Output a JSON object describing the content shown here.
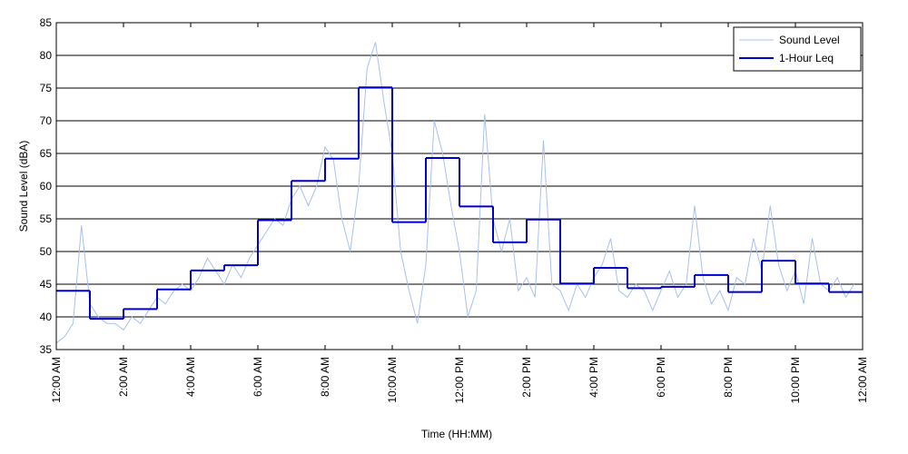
{
  "chart_data": {
    "type": "line",
    "x_label": "Time (HH:MM)",
    "y_label": "Sound Level (dBA)",
    "xlim": [
      0,
      24
    ],
    "xticks": [
      {
        "value": 0,
        "label": "12:00 AM"
      },
      {
        "value": 2,
        "label": "2:00 AM"
      },
      {
        "value": 4,
        "label": "4:00 AM"
      },
      {
        "value": 6,
        "label": "6:00 AM"
      },
      {
        "value": 8,
        "label": "8:00 AM"
      },
      {
        "value": 10,
        "label": "10:00 AM"
      },
      {
        "value": 12,
        "label": "12:00 PM"
      },
      {
        "value": 14,
        "label": "2:00 PM"
      },
      {
        "value": 16,
        "label": "4:00 PM"
      },
      {
        "value": 18,
        "label": "6:00 PM"
      },
      {
        "value": 20,
        "label": "8:00 PM"
      },
      {
        "value": 22,
        "label": "10:00 PM"
      },
      {
        "value": 24,
        "label": "12:00 AM"
      }
    ],
    "ylim": [
      35,
      85
    ],
    "yticks": [
      35,
      40,
      45,
      50,
      55,
      60,
      65,
      70,
      75,
      80,
      85
    ],
    "grid": true,
    "legend": "upper right",
    "series": [
      {
        "name": "Sound Level",
        "color": "#a8c0f0",
        "style": "line",
        "x": [
          0,
          0.25,
          0.5,
          0.75,
          1,
          1.25,
          1.5,
          1.75,
          2,
          2.25,
          2.5,
          2.75,
          3,
          3.25,
          3.5,
          3.75,
          4,
          4.25,
          4.5,
          4.75,
          5,
          5.25,
          5.5,
          5.75,
          6,
          6.25,
          6.5,
          6.75,
          7,
          7.25,
          7.5,
          7.75,
          8,
          8.25,
          8.5,
          8.75,
          9,
          9.25,
          9.5,
          9.75,
          10,
          10.25,
          10.5,
          10.75,
          11,
          11.25,
          11.5,
          11.75,
          12,
          12.25,
          12.5,
          12.75,
          13,
          13.25,
          13.5,
          13.75,
          14,
          14.25,
          14.5,
          14.75,
          15,
          15.25,
          15.5,
          15.75,
          16,
          16.25,
          16.5,
          16.75,
          17,
          17.25,
          17.5,
          17.75,
          18,
          18.25,
          18.5,
          18.75,
          19,
          19.25,
          19.5,
          19.75,
          20,
          20.25,
          20.5,
          20.75,
          21,
          21.25,
          21.5,
          21.75,
          22,
          22.25,
          22.5,
          22.75,
          23,
          23.25,
          23.5,
          23.75
        ],
        "values": [
          36,
          37,
          39,
          54,
          42,
          40,
          39,
          39,
          38,
          40,
          39,
          41,
          43,
          42,
          44,
          45,
          44,
          46,
          49,
          47,
          45,
          48,
          46,
          49,
          51,
          53,
          55,
          54,
          58,
          60,
          57,
          60,
          66,
          64,
          55,
          50,
          60,
          78,
          82,
          73,
          65,
          50,
          44,
          39,
          48,
          70,
          65,
          57,
          50,
          40,
          44,
          71,
          55,
          50,
          55,
          44,
          46,
          43,
          67,
          45,
          44,
          41,
          45,
          43,
          46,
          48,
          52,
          44,
          43,
          45,
          44,
          41,
          44,
          47,
          43,
          45,
          57,
          46,
          42,
          44,
          41,
          46,
          45,
          52,
          47,
          57,
          48,
          44,
          47,
          42,
          52,
          45,
          44,
          46,
          43,
          45
        ]
      },
      {
        "name": "1-Hour Leq",
        "color": "#0000cc",
        "style": "step",
        "x": [
          0,
          1,
          2,
          3,
          4,
          5,
          6,
          7,
          8,
          9,
          10,
          11,
          12,
          13,
          14,
          15,
          16,
          17,
          18,
          19,
          20,
          21,
          22,
          23
        ],
        "values": [
          44,
          39.7,
          41.2,
          44.2,
          47.1,
          47.9,
          54.8,
          60.8,
          64.2,
          75.1,
          54.5,
          64.3,
          56.9,
          51.4,
          54.9,
          45.1,
          47.5,
          44.4,
          44.6,
          46.4,
          43.8,
          48.6,
          45.1,
          43.8
        ]
      }
    ]
  }
}
